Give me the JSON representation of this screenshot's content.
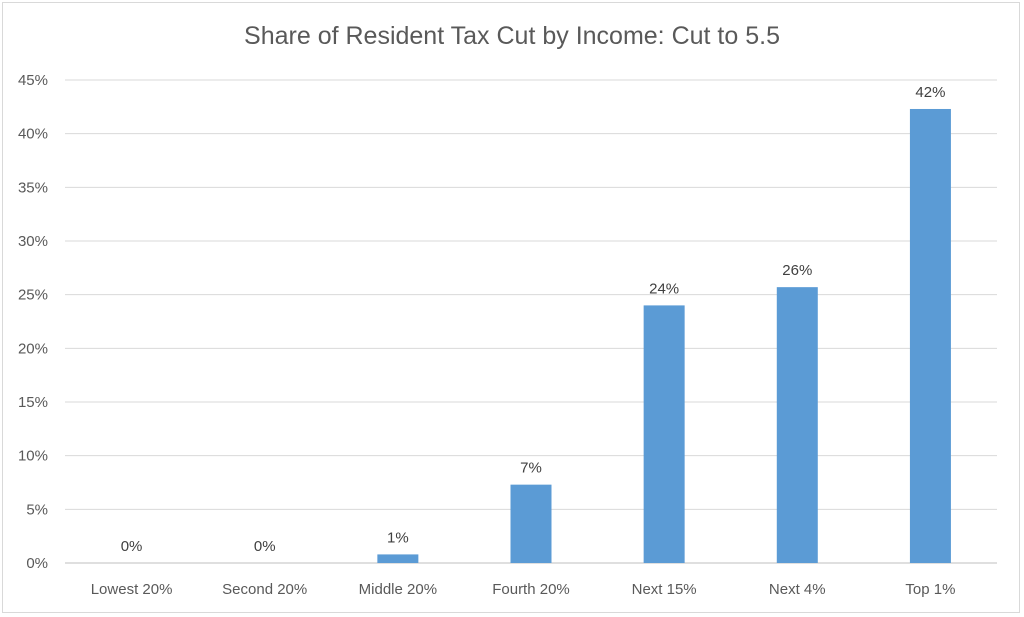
{
  "chart_data": {
    "type": "bar",
    "title": "Share of Resident Tax Cut by Income: Cut to 5.5",
    "categories": [
      "Lowest 20%",
      "Second 20%",
      "Middle 20%",
      "Fourth 20%",
      "Next 15%",
      "Next 4%",
      "Top 1%"
    ],
    "values": [
      0.0,
      0.0,
      0.8,
      7.3,
      24.0,
      25.7,
      42.3
    ],
    "data_labels": [
      "0%",
      "0%",
      "1%",
      "7%",
      "24%",
      "26%",
      "42%"
    ],
    "ylim": [
      0,
      45
    ],
    "yticks": [
      0,
      5,
      10,
      15,
      20,
      25,
      30,
      35,
      40,
      45
    ],
    "ytick_labels": [
      "0%",
      "5%",
      "10%",
      "15%",
      "20%",
      "25%",
      "30%",
      "35%",
      "40%",
      "45%"
    ],
    "grid": true,
    "legend": "none",
    "bar_color": "#5b9bd5"
  }
}
